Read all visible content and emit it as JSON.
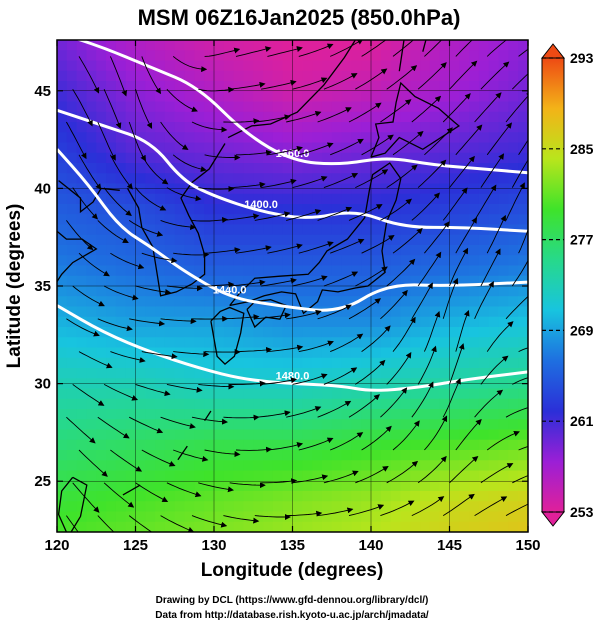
{
  "chart_data": {
    "type": "heatmap",
    "title": "MSM 06Z16Jan2025 (850.0hPa)",
    "xlabel": "Longitude (degrees)",
    "ylabel": "Latitude  (degrees)",
    "xlim": [
      120,
      150
    ],
    "ylim": [
      22.4,
      47.6
    ],
    "x_ticks": [
      120,
      125,
      130,
      135,
      140,
      145,
      150
    ],
    "y_ticks": [
      25,
      30,
      35,
      40,
      45
    ],
    "colorbar": {
      "min": 253,
      "max": 293,
      "ticks": [
        253,
        261,
        269,
        277,
        285,
        293
      ],
      "colors": [
        "#e0209a",
        "#9b1fd6",
        "#2b2fd8",
        "#1e6fe0",
        "#18c4df",
        "#27d98a",
        "#3fe32a",
        "#b9e51c",
        "#f3b318",
        "#ee4a14"
      ]
    },
    "temperature_field": {
      "lon": [
        120,
        125,
        130,
        135,
        140,
        145,
        150
      ],
      "lat": [
        47.6,
        45,
        42,
        39,
        36,
        33,
        30,
        27,
        24,
        22.4
      ],
      "values": [
        [
          259,
          256,
          254,
          253,
          253,
          256,
          258
        ],
        [
          261,
          258,
          256,
          254,
          255,
          257,
          259
        ],
        [
          263,
          260,
          259,
          258,
          259,
          260,
          261
        ],
        [
          265,
          264,
          262,
          262,
          262,
          263,
          264
        ],
        [
          267,
          266,
          265,
          265,
          265,
          266,
          267
        ],
        [
          270,
          269,
          269,
          268,
          268,
          270,
          271
        ],
        [
          273,
          273,
          272,
          272,
          273,
          274,
          275
        ],
        [
          276,
          277,
          278,
          278,
          279,
          280,
          281
        ],
        [
          279,
          280,
          281,
          282,
          283,
          285,
          286
        ],
        [
          280,
          281,
          282,
          283,
          284,
          286,
          287
        ]
      ]
    },
    "contours": [
      {
        "label": "1360.0",
        "lon": [
          120,
          123,
          126,
          129,
          132,
          135,
          138,
          141,
          144,
          147,
          150
        ],
        "lat": [
          48.0,
          47.2,
          46.2,
          45.2,
          42.8,
          41.4,
          41.2,
          41.6,
          41.2,
          41.0,
          40.8
        ]
      },
      {
        "label": "1400.0",
        "lon": [
          120,
          123,
          126,
          128,
          130,
          133,
          136,
          139,
          142,
          146,
          150
        ],
        "lat": [
          44.0,
          43.2,
          42.4,
          40.4,
          39.6,
          38.8,
          38.4,
          38.9,
          38.0,
          38.0,
          37.8
        ]
      },
      {
        "label": "1440.0",
        "lon": [
          120,
          122,
          124,
          126,
          128,
          131,
          134,
          138,
          141,
          145,
          150
        ],
        "lat": [
          42.0,
          40.2,
          38.0,
          37.0,
          35.8,
          34.4,
          34.0,
          33.6,
          35.1,
          35.0,
          35.2
        ]
      },
      {
        "label": "1480.0",
        "lon": [
          120,
          123,
          126,
          129,
          132,
          135,
          138,
          140,
          143,
          146,
          150
        ],
        "lat": [
          34.0,
          32.6,
          31.6,
          30.8,
          30.2,
          30.0,
          29.9,
          29.6,
          29.8,
          30.2,
          30.6
        ]
      }
    ],
    "wind_u": [
      [
        0.6,
        0.3,
        0.8,
        1.0,
        0.9,
        0.7,
        0.6
      ],
      [
        0.5,
        0.4,
        0.9,
        1.0,
        0.8,
        0.6,
        0.5
      ],
      [
        0.7,
        0.9,
        1.0,
        0.9,
        0.8,
        0.5,
        0.3
      ],
      [
        1.0,
        1.0,
        1.0,
        0.9,
        0.6,
        0.2,
        0.5
      ],
      [
        0.8,
        0.9,
        1.0,
        0.9,
        0.6,
        0.4,
        0.9
      ],
      [
        0.6,
        0.8,
        0.9,
        1.0,
        1.0,
        0.9,
        0.9
      ]
    ],
    "wind_v": [
      [
        -0.6,
        -0.8,
        0.2,
        0.2,
        0.5,
        0.6,
        0.3
      ],
      [
        -0.7,
        -0.9,
        -0.1,
        0.2,
        0.4,
        0.5,
        0.6
      ],
      [
        -0.8,
        -0.3,
        0.1,
        0.2,
        0.3,
        0.6,
        0.7
      ],
      [
        -0.5,
        -0.1,
        0.0,
        0.1,
        0.4,
        0.8,
        0.1
      ],
      [
        -0.7,
        -0.4,
        -0.1,
        0.2,
        0.4,
        0.6,
        0.2
      ],
      [
        -0.8,
        -0.5,
        -0.2,
        0.0,
        0.2,
        0.4,
        0.4
      ]
    ],
    "credits": [
      "Drawing by DCL (https://www.gfd-dennou.org/library/dcl/)",
      "Data from http://database.rish.kyoto-u.ac.jp/arch/jmadata/"
    ]
  }
}
